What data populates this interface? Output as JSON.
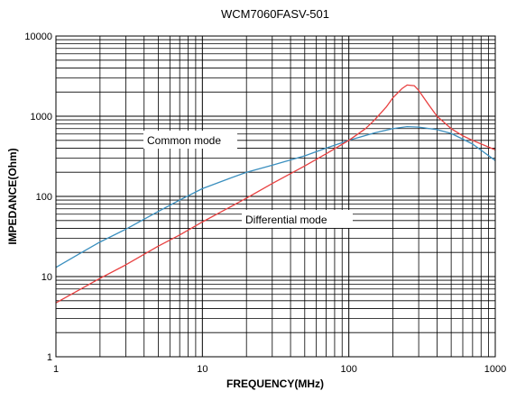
{
  "chart_data": {
    "type": "line",
    "title": "WCM7060FASV-501",
    "xlabel": "FREQUENCY(MHz)",
    "ylabel": "IMPEDANCE(Ohm)",
    "x_scale": "log",
    "y_scale": "log",
    "xlim": [
      1,
      1000
    ],
    "ylim": [
      1,
      10000
    ],
    "grid": true,
    "x_ticks": [
      1,
      10,
      100,
      1000
    ],
    "y_ticks": [
      1,
      10,
      100,
      1000,
      10000
    ],
    "x_tick_labels": [
      "1",
      "10",
      "100",
      "1000"
    ],
    "y_tick_labels": [
      "1",
      "10",
      "100",
      "1000",
      "10000"
    ],
    "series": [
      {
        "name": "Common mode",
        "color": "#3a8fbf",
        "x": [
          1,
          1.5,
          2,
          3,
          5,
          7,
          10,
          15,
          20,
          30,
          50,
          70,
          100,
          150,
          200,
          250,
          300,
          400,
          500,
          700,
          1000
        ],
        "y": [
          13,
          20,
          27,
          39,
          65,
          90,
          125,
          165,
          200,
          245,
          320,
          400,
          500,
          620,
          700,
          740,
          730,
          680,
          610,
          450,
          280
        ]
      },
      {
        "name": "Differential mode",
        "color": "#e84040",
        "x": [
          1,
          2,
          3,
          5,
          7,
          10,
          20,
          30,
          50,
          70,
          100,
          130,
          150,
          180,
          200,
          230,
          250,
          280,
          300,
          350,
          400,
          500,
          600,
          700,
          1000
        ],
        "y": [
          4.7,
          9.5,
          14,
          24,
          33,
          48,
          95,
          145,
          240,
          340,
          500,
          700,
          900,
          1300,
          1700,
          2200,
          2450,
          2400,
          2100,
          1400,
          1000,
          700,
          570,
          500,
          380
        ]
      }
    ],
    "annotations": [
      {
        "text": "Common mode"
      },
      {
        "text": "Differential mode"
      }
    ]
  }
}
